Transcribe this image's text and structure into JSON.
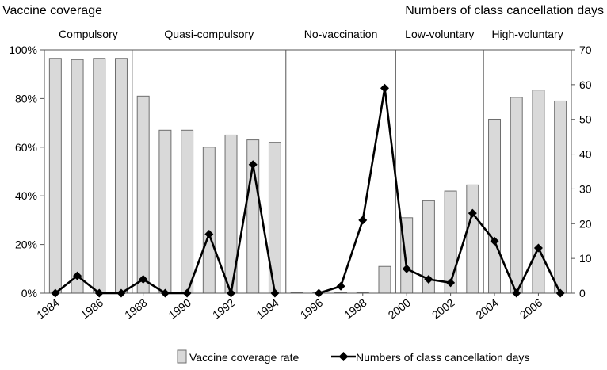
{
  "chart_data": {
    "type": "bar",
    "title_left": "Vaccine coverage",
    "title_right": "Numbers of class cancellation days",
    "years": [
      1984,
      1985,
      1986,
      1987,
      1988,
      1989,
      1990,
      1991,
      1992,
      1993,
      1994,
      1995,
      1996,
      1997,
      1998,
      1999,
      2000,
      2001,
      2002,
      2003,
      2004,
      2005,
      2006,
      2007
    ],
    "x_tick_labels": [
      "1984",
      "1986",
      "1988",
      "1990",
      "1992",
      "1994",
      "1996",
      "1998",
      "2000",
      "2002",
      "2004",
      "2006"
    ],
    "left_axis": {
      "ylim": [
        0,
        100
      ],
      "ticks": [
        "0%",
        "20%",
        "40%",
        "60%",
        "80%",
        "100%"
      ]
    },
    "right_axis": {
      "ylim": [
        0,
        70
      ],
      "ticks": [
        "0",
        "10",
        "20",
        "30",
        "40",
        "50",
        "60",
        "70"
      ]
    },
    "periods": [
      {
        "label": "Compulsory",
        "start": 1984,
        "end": 1987
      },
      {
        "label": "Quasi-compulsory",
        "start": 1988,
        "end": 1994
      },
      {
        "label": "No-vaccination",
        "start": 1995,
        "end": 1999
      },
      {
        "label": "Low-voluntary",
        "start": 2000,
        "end": 2003
      },
      {
        "label": "High-voluntary",
        "start": 2004,
        "end": 2007
      }
    ],
    "series": [
      {
        "name": "Vaccine coverage rate",
        "axis": "left",
        "kind": "bar",
        "values": [
          96.5,
          96,
          96.5,
          96.5,
          81,
          67,
          67,
          60,
          65,
          63,
          62,
          0.3,
          0.3,
          0.3,
          0.3,
          11,
          31,
          38,
          42,
          44.5,
          71.5,
          80.5,
          83.5,
          79
        ]
      },
      {
        "name": "Numbers of class cancellation days",
        "axis": "right",
        "kind": "line",
        "values": [
          0,
          5,
          0,
          0,
          4,
          0,
          0,
          17,
          0,
          37,
          0,
          null,
          0,
          2,
          21,
          59,
          7,
          4,
          3,
          23,
          15,
          0,
          13,
          0
        ]
      }
    ],
    "colors": {
      "bar_fill": "#d9d9d9",
      "bar_stroke": "#6e6e6e",
      "line": "#000000"
    },
    "legend_position": "bottom",
    "grid": false
  }
}
